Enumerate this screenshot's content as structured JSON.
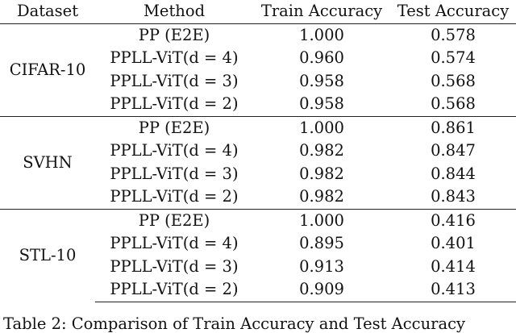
{
  "table": {
    "headers": [
      "Dataset",
      "Method",
      "Train Accuracy",
      "Test Accuracy"
    ],
    "groups": [
      {
        "dataset": "CIFAR-10",
        "rows": [
          {
            "method": "PP (E2E)",
            "train": "1.000",
            "test": "0.578"
          },
          {
            "method": "PPLL-ViT(d = 4)",
            "train": "0.960",
            "test": "0.574"
          },
          {
            "method": "PPLL-ViT(d = 3)",
            "train": "0.958",
            "test": "0.568"
          },
          {
            "method": "PPLL-ViT(d = 2)",
            "train": "0.958",
            "test": "0.568"
          }
        ]
      },
      {
        "dataset": "SVHN",
        "rows": [
          {
            "method": "PP (E2E)",
            "train": "1.000",
            "test": "0.861"
          },
          {
            "method": "PPLL-ViT(d = 4)",
            "train": "0.982",
            "test": "0.847"
          },
          {
            "method": "PPLL-ViT(d = 3)",
            "train": "0.982",
            "test": "0.844"
          },
          {
            "method": "PPLL-ViT(d = 2)",
            "train": "0.982",
            "test": "0.843"
          }
        ]
      },
      {
        "dataset": "STL-10",
        "rows": [
          {
            "method": "PP (E2E)",
            "train": "1.000",
            "test": "0.416"
          },
          {
            "method": "PPLL-ViT(d = 4)",
            "train": "0.895",
            "test": "0.401"
          },
          {
            "method": "PPLL-ViT(d = 3)",
            "train": "0.913",
            "test": "0.414"
          },
          {
            "method": "PPLL-ViT(d = 2)",
            "train": "0.909",
            "test": "0.413"
          }
        ]
      }
    ]
  },
  "caption": "Table 2: Comparison of Train Accuracy and Test Accuracy"
}
